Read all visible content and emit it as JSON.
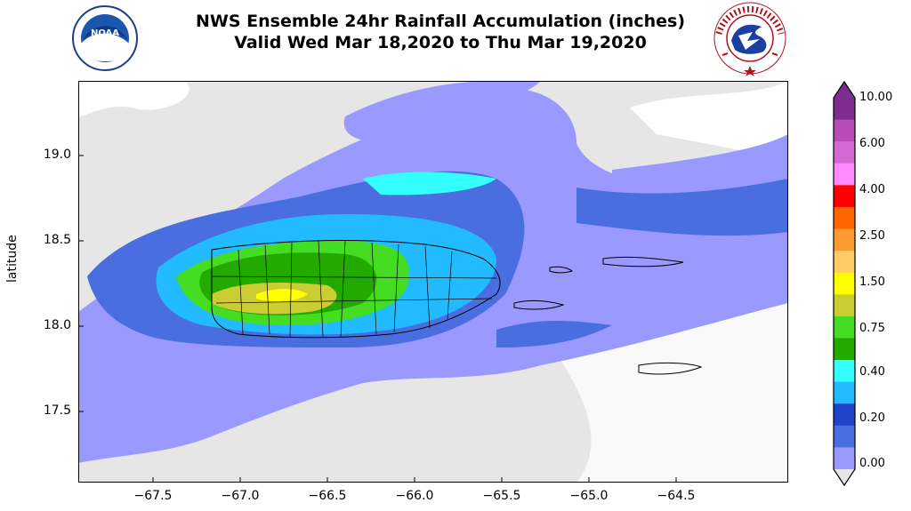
{
  "title": {
    "line1": "NWS Ensemble 24hr Rainfall Accumulation (inches)",
    "line2": "Valid Wed Mar 18,2020 to Thu Mar 19,2020"
  },
  "logos": {
    "left": {
      "text": "NOAA",
      "ring_text": "NATIONAL OCEANIC AND ATMOSPHERIC ADMINISTRATION · U.S. DEPARTMENT OF COMMERCE"
    },
    "right": {
      "ring_text": "NATIONAL WEATHER SERVICE"
    }
  },
  "map": {
    "ylabel": "latitude",
    "yticks": [
      "19.0",
      "18.5",
      "18.0",
      "17.5"
    ],
    "xticks": [
      "−67.5",
      "−67.0",
      "−66.5",
      "−66.0",
      "−65.5",
      "−65.0",
      "−64.5"
    ],
    "background_color": "#e6e6e6"
  },
  "colorbar": {
    "labels": [
      "10.00",
      "6.00",
      "4.00",
      "2.50",
      "1.50",
      "0.75",
      "0.40",
      "0.20",
      "0.00"
    ],
    "colors": [
      "#a88ec7",
      "#7d2d8f",
      "#b74bb7",
      "#d36ad3",
      "#ff8aff",
      "#ff0000",
      "#ff6600",
      "#ff9933",
      "#ffcc66",
      "#ffff00",
      "#cccc33",
      "#44dd22",
      "#22aa00",
      "#33ffff",
      "#22bbff",
      "#2244cc",
      "#4a6ee0",
      "#9999ff",
      "#e6e6e6"
    ]
  }
}
